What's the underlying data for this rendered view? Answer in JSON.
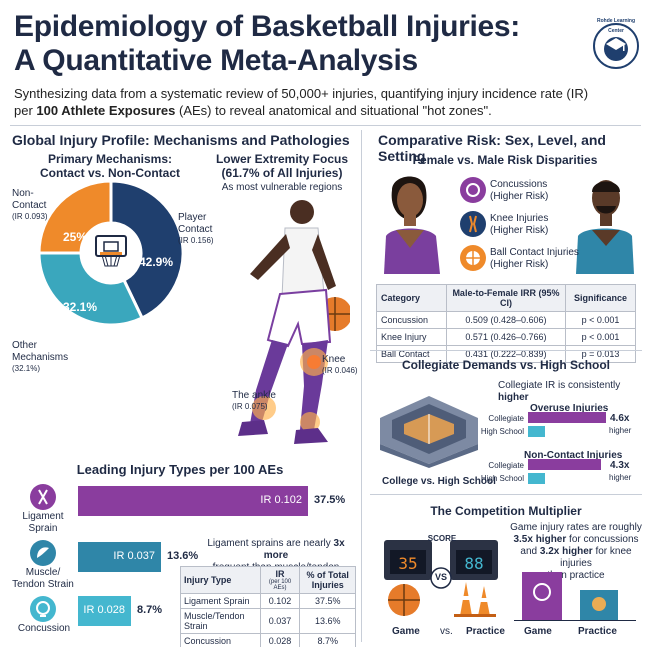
{
  "title": {
    "line1": "Epidemiology of Basketball Injuries:",
    "line2": "A Quantitative Meta-Analysis",
    "subtitle_line1": "Synthesizing data from a systematic review of 50,000+ injuries, quantifying injury incidence rate (IR)",
    "subtitle_pre": "per ",
    "subtitle_bold": "100 Athlete Exposures",
    "subtitle_post": " (AEs) to reveal anatomical and situational \"hot zones\".",
    "logo_text": "Rohde Learning Center"
  },
  "left_section": {
    "heading": "Global Injury Profile: Mechanisms and Pathologies",
    "mechanisms": {
      "title_line1": "Primary Mechanisms:",
      "title_line2": "Contact vs. Non-Contact",
      "non_contact_label1": "Non-",
      "non_contact_label2": "Contact",
      "non_contact_ir": "(IR 0.093)",
      "player_contact_label1": "Player",
      "player_contact_label2": "Contact",
      "player_contact_ir": "(IR 0.156)",
      "other_label1": "Other",
      "other_label2": "Mechanisms",
      "other_value": "(32.1%)",
      "slice_non_contact": "25%",
      "slice_player_contact": "42.9%",
      "slice_other": "32.1%",
      "colors": {
        "player_contact": "#1f3f6e",
        "non_contact": "#ef8a2a",
        "other": "#3aa7bd"
      }
    },
    "lower_extremity": {
      "title_line1": "Lower Extremity Focus",
      "title_line2": "(61.7% of All Injuries)",
      "subtitle": "As most vulnerable regions",
      "knee_label": "Knee",
      "knee_ir": "(IR 0.046)",
      "ankle_label": "The ankle",
      "ankle_ir": "(IR 0.075)"
    },
    "injury_types": {
      "heading": "Leading Injury Types per 100 AEs",
      "bars": [
        {
          "label1": "Ligament",
          "label2": "Sprain",
          "ir_text": "IR 0.102",
          "pct_text": "37.5%",
          "pct": 37.5,
          "color": "#8a3d9e"
        },
        {
          "label1": "Muscle/",
          "label2": "Tendon Strain",
          "ir_text": "IR 0.037",
          "pct_text": "13.6%",
          "pct": 13.6,
          "color": "#2f86a8"
        },
        {
          "label1": "Concussion",
          "label2": "",
          "ir_text": "IR 0.028",
          "pct_text": "8.7%",
          "pct": 8.7,
          "color": "#44b7cf"
        }
      ],
      "note_pre": "Ligament sprains are nearly ",
      "note_bold": "3x more",
      "note_post": "frequent than muscle/tendon strains.",
      "table": {
        "headers": [
          "Injury Type",
          "IR",
          "(per 100 AEs)",
          "% of Total",
          "Injuries"
        ],
        "rows": [
          [
            "Ligament Sprain",
            "0.102",
            "37.5%"
          ],
          [
            "Muscle/Tendon Strain",
            "0.037",
            "13.6%"
          ],
          [
            "Concussion",
            "0.028",
            "8.7%"
          ]
        ]
      }
    }
  },
  "right_section": {
    "heading": "Comparative Risk: Sex, Level, and Setting",
    "sex": {
      "title": "Female vs. Male Risk Disparities",
      "items": [
        {
          "label": "Concussions",
          "sub": "(Higher Risk)"
        },
        {
          "label": "Knee Injuries",
          "sub": "(Higher Risk)"
        },
        {
          "label": "Ball Contact Injuries",
          "sub": "(Higher Risk)"
        }
      ],
      "table": {
        "headers": [
          "Category",
          "Male-to-Female IRR (95% CI)",
          "Significance"
        ],
        "rows": [
          [
            "Concussion",
            "0.509 (0.428–0.606)",
            "p < 0.001"
          ],
          [
            "Knee Injury",
            "0.571 (0.426–0.766)",
            "p < 0.001"
          ],
          [
            "Ball Contact",
            "0.431 (0.222–0.839)",
            "p = 0.013"
          ]
        ]
      }
    },
    "collegiate": {
      "title": "Collegiate Demands vs. High School",
      "note_pre": "Collegiate IR is consistently ",
      "note_bold": "higher",
      "caption": "College vs. High School",
      "groups": [
        {
          "title": "Overuse Injuries",
          "mult": "4.6x",
          "mult_sub": "higher",
          "college_label": "Collegiate",
          "hs_label": "High School",
          "college_value": 4.6,
          "hs_value": 1
        },
        {
          "title": "Non-Contact Injuries",
          "mult": "4.3x",
          "mult_sub": "higher",
          "college_label": "Collegiate",
          "hs_label": "High School",
          "college_value": 4.3,
          "hs_value": 1
        }
      ]
    },
    "competition": {
      "title": "The Competition Multiplier",
      "note_line1": "Game injury rates are roughly",
      "note_bold1": "3.5x higher",
      "note_mid1": " for concussions",
      "note_pre2": "and ",
      "note_bold2": "3.2x higher",
      "note_mid2": " for knee injuries",
      "note_line4": "than practice",
      "scoreboard_label": "SCORE",
      "vs": "VS",
      "label_game": "Game",
      "label_vs": "vs.",
      "label_practice": "Practice",
      "bar_game_label": "Game",
      "bar_practice_label": "Practice"
    }
  }
}
